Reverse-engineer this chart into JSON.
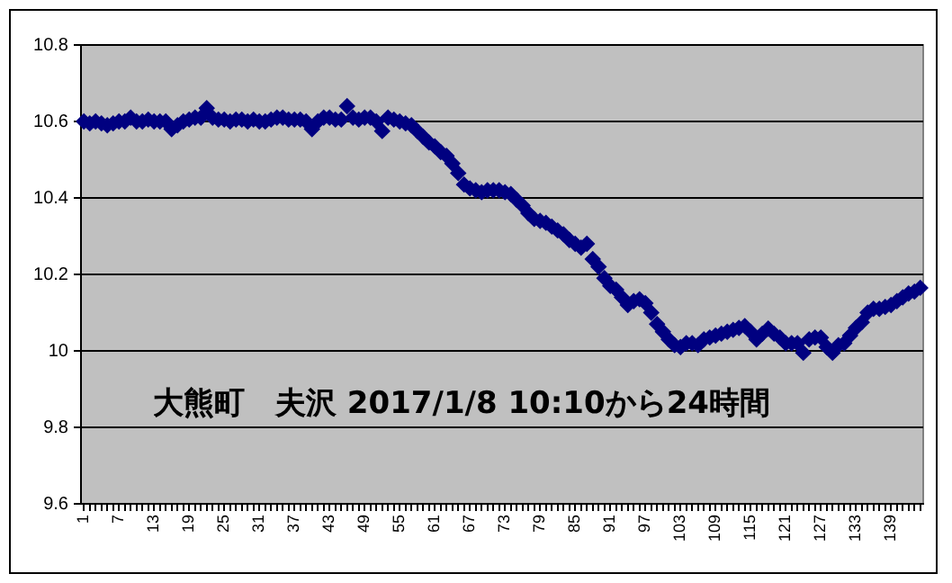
{
  "chart_data": {
    "type": "scatter",
    "marker": "diamond",
    "grid": "y",
    "categories": [
      "1",
      null,
      null,
      null,
      null,
      null,
      "7",
      null,
      null,
      null,
      null,
      null,
      "13",
      null,
      null,
      null,
      null,
      null,
      "19",
      null,
      null,
      null,
      null,
      null,
      "25",
      null,
      null,
      null,
      null,
      null,
      "31",
      null,
      null,
      null,
      null,
      null,
      "37",
      null,
      null,
      null,
      null,
      null,
      "43",
      null,
      null,
      null,
      null,
      null,
      "49",
      null,
      null,
      null,
      null,
      null,
      "55",
      null,
      null,
      null,
      null,
      null,
      "61",
      null,
      null,
      null,
      null,
      null,
      "67",
      null,
      null,
      null,
      null,
      null,
      "73",
      null,
      null,
      null,
      null,
      null,
      "79",
      null,
      null,
      null,
      null,
      null,
      "85",
      null,
      null,
      null,
      null,
      null,
      "91",
      null,
      null,
      null,
      null,
      null,
      "97",
      null,
      null,
      null,
      null,
      null,
      "103",
      null,
      null,
      null,
      null,
      null,
      "109",
      null,
      null,
      null,
      null,
      null,
      "115",
      null,
      null,
      null,
      null,
      null,
      "121",
      null,
      null,
      null,
      null,
      null,
      "127",
      null,
      null,
      null,
      null,
      null,
      "133",
      null,
      null,
      null,
      null,
      null,
      "139",
      null,
      null,
      null,
      null,
      null
    ],
    "series": [
      {
        "color": "#000080",
        "values": [
          10.6,
          10.595,
          10.6,
          10.595,
          10.59,
          10.595,
          10.6,
          10.6,
          10.61,
          10.6,
          10.6,
          10.605,
          10.6,
          10.6,
          10.6,
          10.58,
          10.59,
          10.6,
          10.605,
          10.61,
          10.61,
          10.635,
          10.61,
          10.605,
          10.605,
          10.6,
          10.605,
          10.605,
          10.6,
          10.605,
          10.6,
          10.6,
          10.605,
          10.61,
          10.61,
          10.605,
          10.605,
          10.605,
          10.6,
          10.58,
          10.6,
          10.61,
          10.61,
          10.605,
          10.605,
          10.64,
          10.61,
          10.605,
          10.61,
          10.61,
          10.6,
          10.575,
          10.61,
          10.605,
          10.6,
          10.595,
          10.59,
          10.575,
          10.56,
          10.545,
          10.535,
          10.52,
          10.51,
          10.49,
          10.465,
          10.435,
          10.425,
          10.42,
          10.415,
          10.42,
          10.42,
          10.42,
          10.415,
          10.41,
          10.395,
          10.38,
          10.36,
          10.345,
          10.34,
          10.335,
          10.325,
          10.315,
          10.305,
          10.29,
          10.28,
          10.27,
          10.28,
          10.24,
          10.22,
          10.19,
          10.17,
          10.16,
          10.14,
          10.12,
          10.13,
          10.135,
          10.125,
          10.1,
          10.07,
          10.05,
          10.03,
          10.015,
          10.01,
          10.02,
          10.02,
          10.015,
          10.03,
          10.035,
          10.04,
          10.045,
          10.05,
          10.055,
          10.06,
          10.065,
          10.05,
          10.03,
          10.045,
          10.058,
          10.045,
          10.035,
          10.02,
          10.02,
          10.02,
          9.995,
          10.03,
          10.035,
          10.035,
          10.01,
          9.995,
          10.015,
          10.02,
          10.04,
          10.06,
          10.075,
          10.1,
          10.11,
          10.11,
          10.115,
          10.12,
          10.13,
          10.14,
          10.15,
          10.155,
          10.165
        ]
      }
    ],
    "ylim": [
      9.6,
      10.8
    ],
    "yticks": [
      9.6,
      9.8,
      10,
      10.2,
      10.4,
      10.6,
      10.8
    ],
    "annotations": [
      "大熊町　夫沢 2017/1/8 10:10から24時間"
    ]
  }
}
